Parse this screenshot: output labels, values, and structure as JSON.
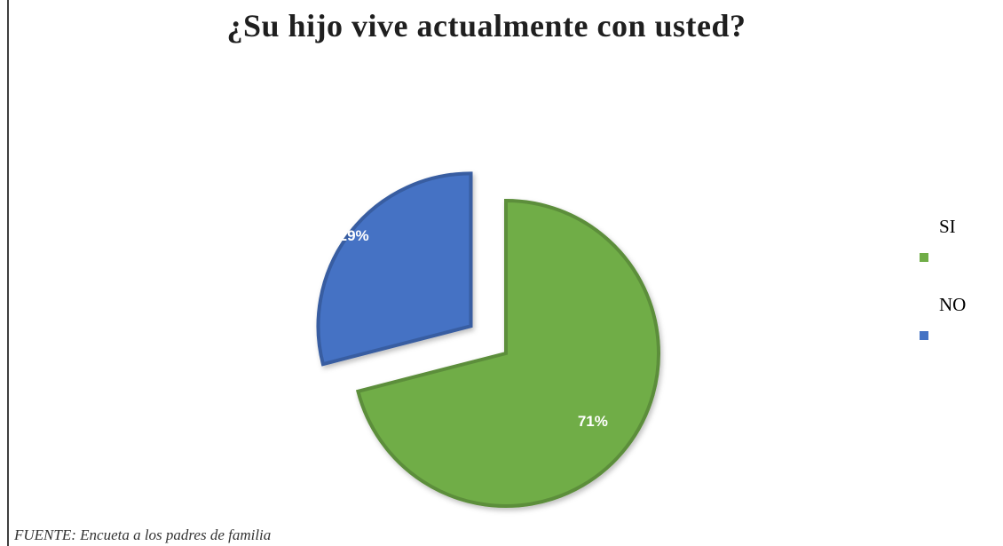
{
  "chart_data": {
    "type": "pie",
    "title": "¿Su hijo vive actualmente con usted?",
    "categories": [
      "SI",
      "NO"
    ],
    "values": [
      71,
      29
    ],
    "labels": [
      "71%",
      "29%"
    ],
    "colors": [
      "#70ad47",
      "#4472c4"
    ],
    "exploded": "NO",
    "legend": "right"
  },
  "source": "FUENTE: Encueta a los padres de familia"
}
